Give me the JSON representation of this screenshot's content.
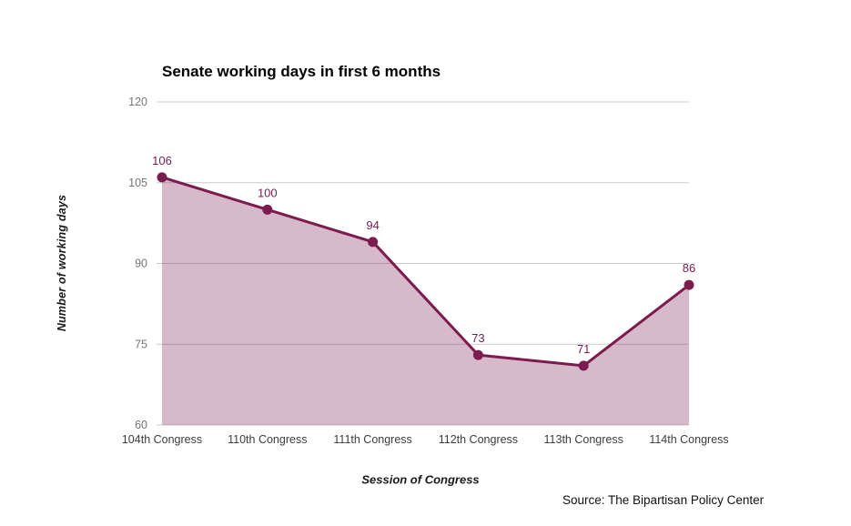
{
  "chart_data": {
    "type": "area",
    "title": "Senate working days in first 6 months",
    "xlabel": "Session of Congress",
    "ylabel": "Number of working days",
    "categories": [
      "104th Congress",
      "110th Congress",
      "111th Congress",
      "112th Congress",
      "113th Congress",
      "114th Congress"
    ],
    "values": [
      106,
      100,
      94,
      73,
      71,
      86
    ],
    "ylim": [
      60,
      120
    ],
    "yticks": [
      60,
      75,
      90,
      105,
      120
    ],
    "grid": true,
    "legend": "none",
    "data_labels_shown": true,
    "source_note": "Source: The Bipartisan Policy Center",
    "colors": {
      "line": "#7B1B4E",
      "fill": "#7B1B4E",
      "fill_opacity": 0.3,
      "gridline": "#CCCCCC",
      "y_tick_label": "#757575",
      "category_label": "#3D3D3D",
      "data_label": "#7B1B4E",
      "title": "#000000"
    }
  }
}
